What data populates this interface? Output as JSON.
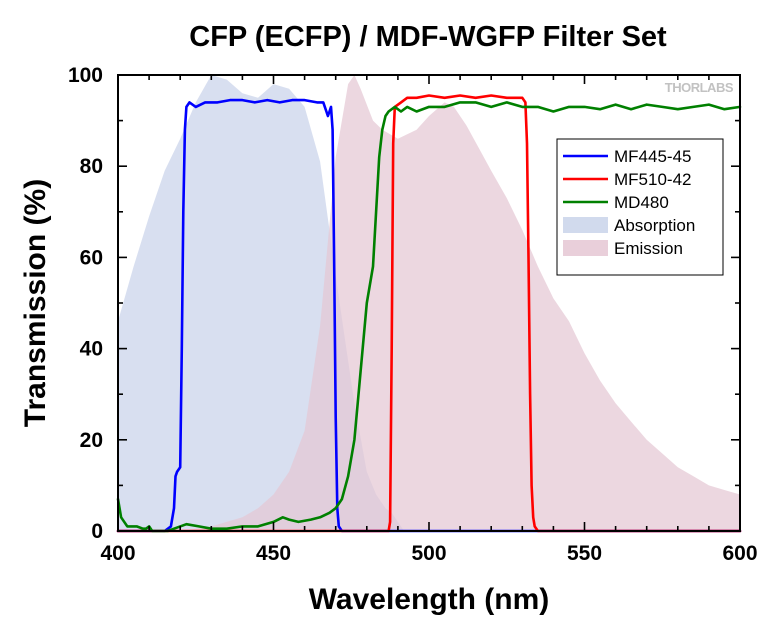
{
  "chart_data": {
    "type": "line",
    "title": "CFP (ECFP) / MDF-WGFP Filter Set",
    "xlabel": "Wavelength (nm)",
    "ylabel": "Transmission (%)",
    "xlim": [
      400,
      600
    ],
    "ylim": [
      0,
      100
    ],
    "x_ticks": [
      400,
      450,
      500,
      550,
      600
    ],
    "y_ticks": [
      0,
      20,
      40,
      60,
      80,
      100
    ],
    "x_minor_step": 10,
    "y_minor_step": 10,
    "grid": false,
    "legend_position": "right",
    "brand": "THORLABS",
    "series": [
      {
        "name": "MF445-45",
        "kind": "line",
        "color": "#0000ff",
        "points": [
          [
            400,
            0
          ],
          [
            415,
            0
          ],
          [
            417,
            1
          ],
          [
            418,
            5
          ],
          [
            418.5,
            12
          ],
          [
            419,
            13
          ],
          [
            420,
            14
          ],
          [
            420.5,
            40
          ],
          [
            421,
            70
          ],
          [
            421.5,
            88
          ],
          [
            422,
            93
          ],
          [
            423,
            94
          ],
          [
            425,
            93
          ],
          [
            428,
            94
          ],
          [
            432,
            94
          ],
          [
            436,
            94.5
          ],
          [
            440,
            94.5
          ],
          [
            444,
            94
          ],
          [
            448,
            94.5
          ],
          [
            452,
            94
          ],
          [
            456,
            94.5
          ],
          [
            460,
            94.5
          ],
          [
            464,
            94
          ],
          [
            466,
            94
          ],
          [
            467,
            92
          ],
          [
            467.5,
            91
          ],
          [
            468,
            92
          ],
          [
            468.5,
            93
          ],
          [
            469,
            88
          ],
          [
            469.5,
            60
          ],
          [
            470,
            25
          ],
          [
            470.5,
            5
          ],
          [
            471,
            1
          ],
          [
            472,
            0
          ],
          [
            600,
            0
          ]
        ]
      },
      {
        "name": "MF510-42",
        "kind": "line",
        "color": "#ff0000",
        "points": [
          [
            400,
            0
          ],
          [
            487,
            0
          ],
          [
            487.5,
            2
          ],
          [
            488,
            40
          ],
          [
            488.5,
            85
          ],
          [
            489,
            93
          ],
          [
            491,
            94
          ],
          [
            493,
            95
          ],
          [
            496,
            95
          ],
          [
            500,
            95.5
          ],
          [
            505,
            95
          ],
          [
            510,
            95.5
          ],
          [
            515,
            95
          ],
          [
            520,
            95.5
          ],
          [
            525,
            95
          ],
          [
            530,
            95
          ],
          [
            531,
            94
          ],
          [
            531.5,
            85
          ],
          [
            532,
            60
          ],
          [
            532.5,
            30
          ],
          [
            533,
            10
          ],
          [
            533.5,
            3
          ],
          [
            534,
            1
          ],
          [
            535,
            0
          ],
          [
            600,
            0
          ]
        ]
      },
      {
        "name": "MD480",
        "kind": "line",
        "color": "#008000",
        "points": [
          [
            400,
            7
          ],
          [
            401,
            3
          ],
          [
            403,
            1
          ],
          [
            406,
            1
          ],
          [
            408,
            0.5
          ],
          [
            409,
            0.5
          ],
          [
            410,
            1
          ],
          [
            411,
            0
          ],
          [
            413,
            0
          ],
          [
            416,
            0
          ],
          [
            418,
            0.5
          ],
          [
            422,
            1.5
          ],
          [
            426,
            1
          ],
          [
            430,
            0.5
          ],
          [
            435,
            0.5
          ],
          [
            440,
            1
          ],
          [
            445,
            1
          ],
          [
            450,
            2
          ],
          [
            453,
            3
          ],
          [
            455,
            2.5
          ],
          [
            458,
            2
          ],
          [
            462,
            2.5
          ],
          [
            465,
            3
          ],
          [
            468,
            4
          ],
          [
            470,
            5
          ],
          [
            472,
            7
          ],
          [
            474,
            12
          ],
          [
            476,
            20
          ],
          [
            478,
            35
          ],
          [
            480,
            50
          ],
          [
            482,
            58
          ],
          [
            483,
            70
          ],
          [
            484,
            82
          ],
          [
            485,
            88
          ],
          [
            486,
            91
          ],
          [
            487,
            92
          ],
          [
            489,
            93
          ],
          [
            491,
            92
          ],
          [
            493,
            93
          ],
          [
            496,
            92
          ],
          [
            500,
            93
          ],
          [
            505,
            93
          ],
          [
            510,
            94
          ],
          [
            515,
            94
          ],
          [
            520,
            93
          ],
          [
            525,
            94
          ],
          [
            530,
            93
          ],
          [
            535,
            93
          ],
          [
            540,
            92
          ],
          [
            545,
            93
          ],
          [
            550,
            93
          ],
          [
            555,
            92.5
          ],
          [
            560,
            93.5
          ],
          [
            565,
            92.5
          ],
          [
            570,
            93.5
          ],
          [
            575,
            93
          ],
          [
            580,
            92.5
          ],
          [
            585,
            93
          ],
          [
            590,
            93.5
          ],
          [
            595,
            92.5
          ],
          [
            600,
            93
          ]
        ]
      },
      {
        "name": "Absorption",
        "kind": "area",
        "color": "#c9d3ea",
        "points": [
          [
            400,
            46
          ],
          [
            405,
            58
          ],
          [
            410,
            69
          ],
          [
            415,
            79
          ],
          [
            420,
            86
          ],
          [
            425,
            94
          ],
          [
            430,
            100
          ],
          [
            435,
            99
          ],
          [
            440,
            96
          ],
          [
            445,
            95
          ],
          [
            450,
            98
          ],
          [
            455,
            97
          ],
          [
            460,
            93
          ],
          [
            465,
            81
          ],
          [
            470,
            56
          ],
          [
            473,
            42
          ],
          [
            476,
            28
          ],
          [
            480,
            13
          ],
          [
            483,
            8
          ],
          [
            486,
            5
          ],
          [
            488,
            4
          ],
          [
            490,
            2
          ],
          [
            492,
            0
          ]
        ]
      },
      {
        "name": "Emission",
        "kind": "area",
        "color": "#e5c7d4",
        "points": [
          [
            420,
            0
          ],
          [
            430,
            1
          ],
          [
            440,
            3
          ],
          [
            445,
            5
          ],
          [
            450,
            8
          ],
          [
            455,
            13
          ],
          [
            460,
            22
          ],
          [
            465,
            45
          ],
          [
            470,
            82
          ],
          [
            474,
            98
          ],
          [
            476,
            100
          ],
          [
            478,
            97
          ],
          [
            482,
            90
          ],
          [
            485,
            88
          ],
          [
            490,
            86
          ],
          [
            493,
            87
          ],
          [
            496,
            88
          ],
          [
            500,
            91
          ],
          [
            505,
            94
          ],
          [
            508,
            93
          ],
          [
            512,
            89
          ],
          [
            516,
            84
          ],
          [
            520,
            79
          ],
          [
            525,
            73
          ],
          [
            530,
            66
          ],
          [
            535,
            58
          ],
          [
            540,
            51
          ],
          [
            545,
            46
          ],
          [
            550,
            39
          ],
          [
            555,
            33
          ],
          [
            560,
            28
          ],
          [
            565,
            24
          ],
          [
            570,
            20
          ],
          [
            575,
            17
          ],
          [
            580,
            14
          ],
          [
            585,
            12
          ],
          [
            590,
            10
          ],
          [
            595,
            9
          ],
          [
            600,
            8
          ]
        ]
      }
    ]
  }
}
